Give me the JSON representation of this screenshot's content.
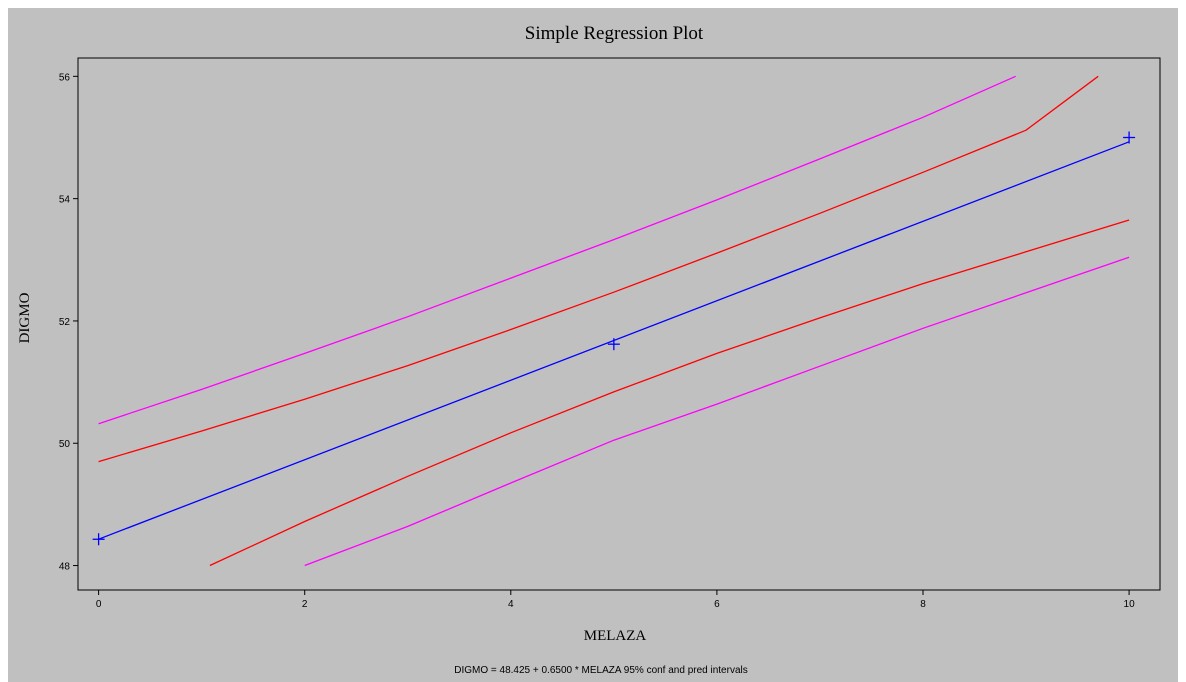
{
  "chart_data": {
    "type": "line",
    "title": "Simple Regression Plot",
    "xlabel": "MELAZA",
    "ylabel": "DIGMO",
    "footnote": "DIGMO = 48.425 + 0.6500 * MELAZA  95% conf and pred intervals",
    "xlim": [
      -0.2,
      10.3
    ],
    "ylim": [
      47.6,
      56.3
    ],
    "x_ticks": [
      {
        "value": 0,
        "label": "0"
      },
      {
        "value": 2,
        "label": "2"
      },
      {
        "value": 4,
        "label": "4"
      },
      {
        "value": 6,
        "label": "6"
      },
      {
        "value": 8,
        "label": "8"
      },
      {
        "value": 10,
        "label": "10"
      }
    ],
    "y_ticks": [
      {
        "value": 48,
        "label": "48"
      },
      {
        "value": 50,
        "label": "50"
      },
      {
        "value": 52,
        "label": "52"
      },
      {
        "value": 54,
        "label": "54"
      },
      {
        "value": 56,
        "label": "56"
      }
    ],
    "grid": false,
    "legend": "none",
    "background_color": "#c0c0c0",
    "series": [
      {
        "color": "#ff00ff",
        "x": [
          0,
          1,
          2,
          3,
          4,
          5,
          6,
          7,
          8,
          8.9
        ],
        "y": [
          50.32,
          50.88,
          51.47,
          52.07,
          52.7,
          53.33,
          53.98,
          54.65,
          55.33,
          56.0
        ]
      },
      {
        "color": "#ff0000",
        "x": [
          0,
          1,
          2,
          3,
          4,
          5,
          6,
          7,
          8,
          9,
          9.7
        ],
        "y": [
          49.7,
          50.2,
          50.72,
          51.27,
          51.86,
          52.47,
          53.11,
          53.76,
          54.43,
          55.12,
          56.0
        ]
      },
      {
        "color": "#0000ff",
        "x": [
          0,
          10
        ],
        "y": [
          48.43,
          54.93
        ]
      },
      {
        "color": "#ff0000",
        "x": [
          1.08,
          2,
          3,
          4,
          5,
          6,
          7,
          8,
          9,
          10
        ],
        "y": [
          48.0,
          48.72,
          49.46,
          50.17,
          50.84,
          51.47,
          52.05,
          52.61,
          53.13,
          53.65
        ]
      },
      {
        "color": "#ff00ff",
        "x": [
          2,
          3,
          4,
          5,
          6,
          7,
          8,
          9,
          10
        ],
        "y": [
          48.0,
          48.64,
          49.35,
          50.05,
          50.64,
          51.26,
          51.88,
          52.46,
          53.04
        ]
      }
    ],
    "points": {
      "color": "#0000ff",
      "marker": "plus",
      "x": [
        0,
        5,
        10
      ],
      "y": [
        48.43,
        51.62,
        55.0
      ]
    }
  }
}
